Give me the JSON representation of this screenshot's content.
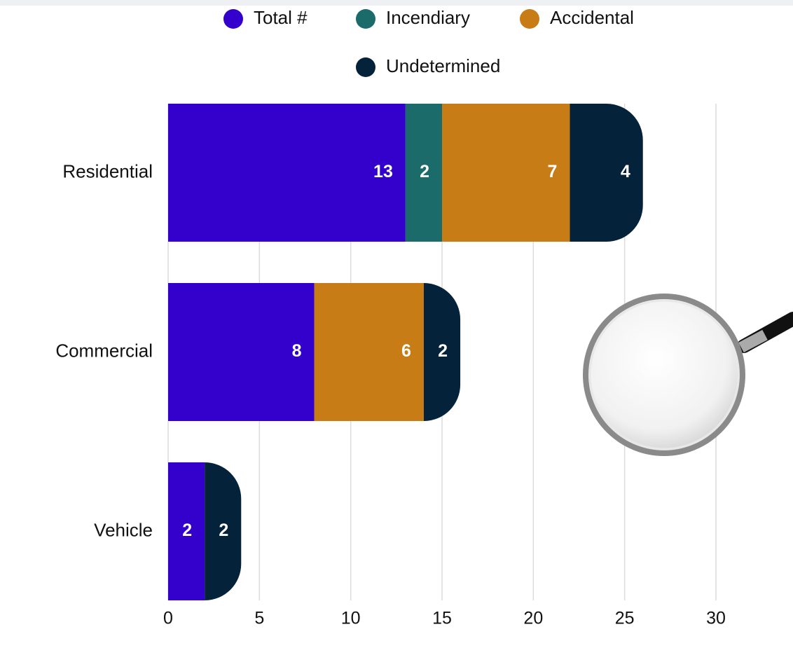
{
  "chart_data": {
    "type": "stacked-barh",
    "categories": [
      "Residential",
      "Commercial",
      "Vehicle"
    ],
    "series": [
      {
        "name": "Total #",
        "color": "#3300cc",
        "values": [
          13,
          8,
          2
        ]
      },
      {
        "name": "Incendiary",
        "color": "#1b6b6b",
        "values": [
          2,
          0,
          0
        ]
      },
      {
        "name": "Accidental",
        "color": "#c77c16",
        "values": [
          7,
          6,
          0
        ]
      },
      {
        "name": "Undetermined",
        "color": "#04223a",
        "values": [
          4,
          2,
          2
        ]
      }
    ],
    "xlim": [
      0,
      30
    ],
    "xticks": [
      0,
      5,
      10,
      15,
      20,
      25,
      30
    ],
    "grid": true,
    "legend": "top"
  }
}
